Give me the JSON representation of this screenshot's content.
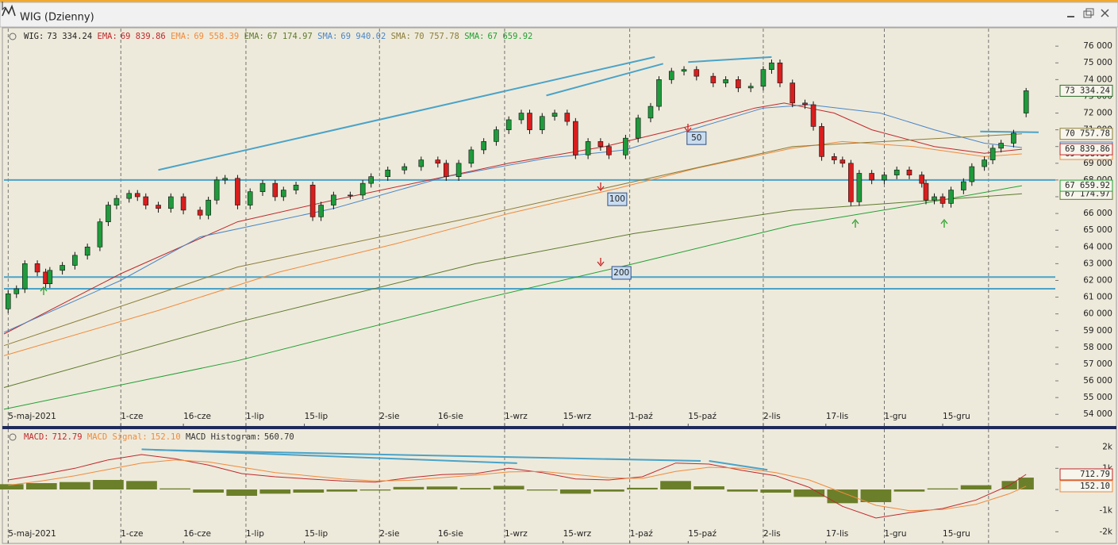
{
  "window": {
    "title": "WIG (Dzienny)"
  },
  "chart_data": [
    {
      "type": "candlestick",
      "name": "WIG:",
      "value_label": "73 334.24",
      "up_color": "#1f9a3c",
      "down_color": "#d81e1e",
      "x": [
        125,
        127,
        129,
        132,
        134,
        135,
        138,
        141,
        144,
        147,
        149,
        151,
        154,
        156,
        158,
        161,
        164,
        167,
        171,
        173,
        175,
        177,
        180,
        183,
        186,
        189,
        191,
        194,
        198,
        200,
        203,
        207,
        210,
        212,
        216,
        220,
        224,
        228,
        230,
        233,
        236,
        239,
        242,
        245,
        248,
        250,
        253,
        256,
        259,
        261,
        264,
        267,
        269,
        273,
        276,
        279,
        281,
        284,
        287,
        290,
        294,
        297,
        300,
        303,
        306,
        308,
        310,
        313,
        316,
        318,
        320,
        323,
        325,
        327,
        329,
        332,
        335,
        338,
        341,
        344,
        345,
        347,
        349,
        351,
        354,
        356,
        359,
        361,
        363,
        366,
        369
      ],
      "open": [
        60300,
        61200,
        61500,
        63000,
        62500,
        61800,
        62600,
        62900,
        63500,
        64000,
        65500,
        66500,
        66900,
        67200,
        67000,
        66500,
        66300,
        67000,
        66200,
        65900,
        66800,
        68000,
        68100,
        66500,
        67300,
        67800,
        67000,
        67400,
        67700,
        65800,
        66500,
        67100,
        67100,
        67800,
        68200,
        68600,
        68800,
        69200,
        69000,
        68200,
        69000,
        69800,
        70300,
        71000,
        71600,
        72000,
        71000,
        71800,
        72000,
        71500,
        69500,
        70300,
        70000,
        69500,
        70500,
        71700,
        72400,
        74000,
        74500,
        74600,
        74200,
        73800,
        74000,
        73500,
        73600,
        74600,
        75000,
        73800,
        72600,
        72500,
        71200,
        69400,
        69200,
        69000,
        66700,
        68400,
        68000,
        68300,
        68600,
        68300,
        67800,
        66800,
        67000,
        66600,
        67400,
        67900,
        68800,
        69200,
        69900,
        70200,
        72000
      ],
      "high": [
        61400,
        61700,
        63200,
        63200,
        62700,
        62800,
        63100,
        63700,
        64200,
        65700,
        66700,
        67100,
        67400,
        67400,
        67200,
        66700,
        67200,
        67200,
        66400,
        67000,
        68200,
        68300,
        68300,
        67500,
        68000,
        68000,
        67600,
        67900,
        67900,
        66700,
        67300,
        67300,
        68000,
        68400,
        68800,
        69000,
        69400,
        69400,
        69200,
        69200,
        70000,
        70500,
        71200,
        71800,
        72200,
        72200,
        72000,
        72200,
        72200,
        71700,
        70500,
        70500,
        70200,
        70700,
        71900,
        72600,
        74200,
        74700,
        74800,
        74800,
        74400,
        74200,
        74200,
        73800,
        74800,
        75200,
        75200,
        74000,
        72800,
        72700,
        71400,
        69600,
        69400,
        69200,
        68600,
        68600,
        68500,
        68800,
        68800,
        68500,
        68000,
        67200,
        67200,
        67600,
        68100,
        69000,
        69400,
        70100,
        70400,
        71000,
        73500
      ],
      "low": [
        60050,
        60950,
        61250,
        62250,
        61550,
        61550,
        62350,
        62650,
        63250,
        63750,
        65250,
        66250,
        66650,
        66750,
        66250,
        66050,
        66050,
        65950,
        65650,
        65650,
        66550,
        67750,
        66250,
        66250,
        67050,
        66750,
        66750,
        67150,
        65550,
        65550,
        66250,
        66850,
        66850,
        67550,
        67950,
        68350,
        68550,
        68750,
        67950,
        67950,
        68750,
        69550,
        70050,
        70750,
        71350,
        70750,
        70750,
        71550,
        71250,
        69250,
        69250,
        69750,
        69250,
        69250,
        70250,
        71450,
        72150,
        73750,
        74250,
        73950,
        73550,
        73550,
        73250,
        73250,
        73350,
        74350,
        73550,
        72350,
        72250,
        70950,
        69150,
        68950,
        68750,
        66450,
        66450,
        67750,
        67750,
        68050,
        68050,
        67550,
        66550,
        66550,
        66350,
        66350,
        67150,
        67650,
        68550,
        68950,
        69650,
        69950,
        71750
      ],
      "close": [
        61200,
        61500,
        63000,
        62500,
        61800,
        62600,
        62900,
        63500,
        64000,
        65500,
        66500,
        66900,
        67200,
        67000,
        66500,
        66300,
        67000,
        66200,
        65900,
        66800,
        68000,
        68100,
        66500,
        67300,
        67800,
        67000,
        67400,
        67700,
        65800,
        66500,
        67100,
        67100,
        67800,
        68200,
        68600,
        68800,
        69200,
        69000,
        68200,
        69000,
        69800,
        70300,
        71000,
        71600,
        72000,
        71000,
        71800,
        72000,
        71500,
        69500,
        70300,
        70000,
        69500,
        70500,
        71700,
        72400,
        74000,
        74500,
        74600,
        74200,
        73800,
        74000,
        73500,
        73600,
        74600,
        75000,
        73800,
        72600,
        72500,
        71200,
        69400,
        69200,
        69000,
        66700,
        68400,
        68000,
        68300,
        68600,
        68300,
        67800,
        66800,
        67000,
        66600,
        67400,
        67900,
        68800,
        69200,
        69900,
        70200,
        70800,
        73334.24
      ],
      "series": [
        {
          "name": "EMA:",
          "color": "#c0282d",
          "value_label": "69 839.86",
          "x": [
            124,
            152,
            180,
            203,
            226,
            245,
            268,
            288,
            304,
            311,
            323,
            332,
            347,
            359,
            368
          ],
          "values": [
            58800,
            62400,
            65500,
            66800,
            68000,
            69000,
            70000,
            71200,
            72300,
            72600,
            72000,
            71000,
            70000,
            69600,
            69839.86
          ]
        },
        {
          "name": "EMA:",
          "color": "#f08a3c",
          "value_label": "69 558.39",
          "x": [
            124,
            161,
            190,
            218,
            245,
            271,
            290,
            313,
            325,
            342,
            359,
            368
          ],
          "values": [
            57500,
            60200,
            62500,
            64200,
            66000,
            67500,
            68700,
            69900,
            70300,
            70000,
            69400,
            69558.39
          ]
        },
        {
          "name": "EMA:",
          "color": "#5d7a2e",
          "value_label": "67 174.97",
          "x": [
            124,
            180,
            237,
            275,
            313,
            342,
            368
          ],
          "values": [
            55600,
            59500,
            63000,
            64800,
            66200,
            66700,
            67174.97
          ]
        },
        {
          "name": "SMA:",
          "color": "#4a86c8",
          "value_label": "69 940.02",
          "x": [
            124,
            152,
            171,
            203,
            230,
            254,
            273,
            290,
            306,
            317,
            334,
            347,
            359,
            368
          ],
          "values": [
            58900,
            62000,
            64600,
            66300,
            68200,
            69300,
            69800,
            71100,
            72300,
            72500,
            72000,
            71000,
            70200,
            69940.02
          ]
        },
        {
          "name": "SMA:",
          "color": "#8b7d3a",
          "value_label": "70 757.78",
          "x": [
            124,
            180,
            237,
            275,
            313,
            342,
            368
          ],
          "values": [
            58100,
            62800,
            65800,
            67900,
            70000,
            70400,
            70757.78
          ]
        },
        {
          "name": "SMA:",
          "color": "#22a035",
          "value_label": "67 659.92",
          "x": [
            124,
            180,
            237,
            275,
            313,
            342,
            368
          ],
          "values": [
            54300,
            57200,
            60800,
            63000,
            65300,
            66500,
            67659.92
          ]
        }
      ],
      "hlines": {
        "color": "#4aa3c8",
        "values": [
          68000,
          62200,
          61500
        ]
      },
      "trendlines": [
        {
          "x": [
            161,
            280
          ],
          "y": [
            68600,
            75350
          ]
        },
        {
          "x": [
            254,
            282
          ],
          "y": [
            73050,
            74950
          ]
        },
        {
          "x": [
            288,
            308
          ],
          "y": [
            75050,
            75350
          ]
        },
        {
          "x": [
            358,
            372
          ],
          "y": [
            70900,
            70850
          ]
        }
      ],
      "annotations": [
        {
          "text": "50",
          "x": 290,
          "y": 70500
        },
        {
          "text": "100",
          "x": 271,
          "y": 66850
        },
        {
          "text": "200",
          "x": 272,
          "y": 62450
        }
      ],
      "xlim": [
        124,
        376
      ],
      "xticks": [
        {
          "value": 125,
          "label": "5-maj-2021"
        },
        {
          "value": 152,
          "label": "1-cze"
        },
        {
          "value": 167,
          "label": "16-cze"
        },
        {
          "value": 182,
          "label": "1-lip"
        },
        {
          "value": 196,
          "label": "15-lip"
        },
        {
          "value": 214,
          "label": "2-sie"
        },
        {
          "value": 228,
          "label": "16-sie"
        },
        {
          "value": 244,
          "label": "1-wrz"
        },
        {
          "value": 258,
          "label": "15-wrz"
        },
        {
          "value": 274,
          "label": "1-paź"
        },
        {
          "value": 288,
          "label": "15-paź"
        },
        {
          "value": 306,
          "label": "2-lis"
        },
        {
          "value": 321,
          "label": "17-lis"
        },
        {
          "value": 335,
          "label": "1-gru"
        },
        {
          "value": 349,
          "label": "15-gru"
        }
      ],
      "vgrid": [
        125,
        152,
        182,
        214,
        244,
        274,
        306,
        335,
        360
      ],
      "ylim": [
        53300,
        77050
      ],
      "yticks": [
        {
          "value": 54000,
          "label": "54 000"
        },
        {
          "value": 55000,
          "label": "55 000"
        },
        {
          "value": 56000,
          "label": "56 000"
        },
        {
          "value": 57000,
          "label": "57 000"
        },
        {
          "value": 58000,
          "label": "58 000"
        },
        {
          "value": 59000,
          "label": "59 000"
        },
        {
          "value": 60000,
          "label": "60 000"
        },
        {
          "value": 61000,
          "label": "61 000"
        },
        {
          "value": 62000,
          "label": "62 000"
        },
        {
          "value": 63000,
          "label": "63 000"
        },
        {
          "value": 64000,
          "label": "64 000"
        },
        {
          "value": 65000,
          "label": "65 000"
        },
        {
          "value": 66000,
          "label": "66 000"
        },
        {
          "value": 67000,
          "label": "67 000"
        },
        {
          "value": 68000,
          "label": "68 000"
        },
        {
          "value": 69000,
          "label": "69 000"
        },
        {
          "value": 70000,
          "label": "70 000"
        },
        {
          "value": 71000,
          "label": "71 000"
        },
        {
          "value": 72000,
          "label": "72 000"
        },
        {
          "value": 73000,
          "label": "73 000"
        },
        {
          "value": 74000,
          "label": "74 000"
        },
        {
          "value": 75000,
          "label": "75 000"
        },
        {
          "value": 76000,
          "label": "76 000"
        }
      ]
    },
    {
      "type": "macd",
      "x": [
        125,
        133,
        141,
        149,
        157,
        165,
        173,
        181,
        189,
        197,
        205,
        213,
        221,
        229,
        237,
        245,
        253,
        261,
        269,
        277,
        285,
        293,
        301,
        309,
        317,
        325,
        333,
        341,
        349,
        357,
        365,
        369
      ],
      "series": [
        {
          "name": "MACD:",
          "color": "#c0282d",
          "value_label": "712.79",
          "values": [
            450,
            700,
            1000,
            1400,
            1650,
            1450,
            1150,
            750,
            600,
            500,
            400,
            350,
            550,
            700,
            750,
            1000,
            800,
            500,
            450,
            600,
            1250,
            1200,
            900,
            650,
            100,
            -800,
            -1350,
            -1100,
            -900,
            -500,
            200,
            712.79
          ]
        },
        {
          "name": "MACD Signal:",
          "color": "#f08a3c",
          "value_label": "152.10",
          "values": [
            200,
            400,
            650,
            950,
            1250,
            1400,
            1300,
            1050,
            800,
            650,
            500,
            400,
            430,
            560,
            680,
            830,
            850,
            700,
            550,
            520,
            850,
            1050,
            1000,
            800,
            450,
            -150,
            -750,
            -1000,
            -950,
            -700,
            -200,
            152.1
          ]
        }
      ],
      "histogram": {
        "name": "MACD Histogram:",
        "color": "#6b7f2a",
        "value_label": "560.70",
        "values": [
          250,
          300,
          350,
          450,
          400,
          50,
          -150,
          -300,
          -200,
          -150,
          -100,
          -50,
          120,
          140,
          70,
          170,
          -50,
          -200,
          -100,
          80,
          400,
          150,
          -100,
          -150,
          -350,
          -650,
          -600,
          -100,
          50,
          200,
          400,
          560.7
        ]
      },
      "trendlines": [
        {
          "x": [
            157,
            247
          ],
          "y": [
            1900,
            1240
          ]
        },
        {
          "x": [
            160,
            291
          ],
          "y": [
            1870,
            1350
          ]
        },
        {
          "x": [
            293,
            307
          ],
          "y": [
            1350,
            930
          ]
        }
      ],
      "trend_color": "#4aa3c8",
      "xlim": [
        124,
        376
      ],
      "xticks": [
        {
          "value": 125,
          "label": "5-maj-2021"
        },
        {
          "value": 152,
          "label": "1-cze"
        },
        {
          "value": 167,
          "label": "16-cze"
        },
        {
          "value": 182,
          "label": "1-lip"
        },
        {
          "value": 196,
          "label": "15-lip"
        },
        {
          "value": 214,
          "label": "2-sie"
        },
        {
          "value": 228,
          "label": "16-sie"
        },
        {
          "value": 244,
          "label": "1-wrz"
        },
        {
          "value": 258,
          "label": "15-wrz"
        },
        {
          "value": 274,
          "label": "1-paź"
        },
        {
          "value": 288,
          "label": "15-paź"
        },
        {
          "value": 306,
          "label": "2-lis"
        },
        {
          "value": 321,
          "label": "17-lis"
        },
        {
          "value": 335,
          "label": "1-gru"
        },
        {
          "value": 349,
          "label": "15-gru"
        }
      ],
      "vgrid": [
        125,
        152,
        182,
        214,
        244,
        274,
        306,
        335,
        360
      ],
      "ylim": [
        -2550,
        2850
      ],
      "yticks": [
        {
          "value": 2000,
          "label": "2k"
        },
        {
          "value": 1000,
          "label": "1k"
        },
        {
          "value": 0,
          "label": "0k"
        },
        {
          "value": -1000,
          "label": "-1k"
        },
        {
          "value": -2000,
          "label": "-2k"
        }
      ]
    }
  ]
}
